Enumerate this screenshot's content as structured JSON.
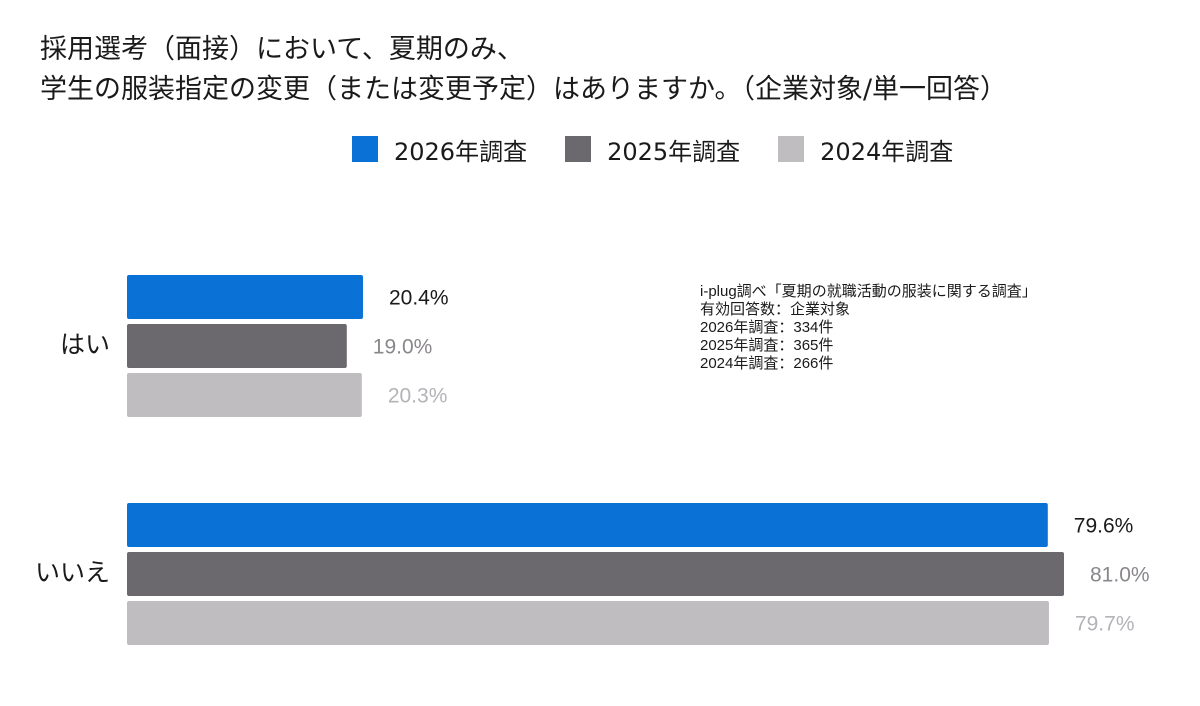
{
  "title": {
    "line1": "採用選考（面接）において、夏期のみ、",
    "line2": "学生の服装指定の変更（または変更予定）はありますか。（企業対象/単一回答）"
  },
  "note": {
    "line1": "i-plug調べ「夏期の就職活動の服装に関する調査」",
    "line2": "有効回答数：企業対象",
    "line3": "2026年調査：334件",
    "line4": "2025年調査：365件",
    "line5": "2024年調査：266件"
  },
  "chart_data": {
    "type": "bar",
    "orientation": "horizontal",
    "categories": [
      "はい",
      "いいえ"
    ],
    "series": [
      {
        "name": "2026年調査",
        "color": "#0a72d6",
        "label_color": "#1a1a1a",
        "values": [
          20.4,
          79.6
        ],
        "labels": [
          "20.4%",
          "79.6%"
        ]
      },
      {
        "name": "2025年調査",
        "color": "#6b696d",
        "label_color": "#8a878c",
        "values": [
          19.0,
          81.0
        ],
        "labels": [
          "19.0%",
          "81.0%"
        ]
      },
      {
        "name": "2024年調査",
        "color": "#bfbdc0",
        "label_color": "#b5b2b8",
        "values": [
          20.3,
          79.7
        ],
        "labels": [
          "20.3%",
          "79.7%"
        ]
      }
    ],
    "value_unit": "%",
    "xlim": [
      0,
      81.0
    ],
    "grid": false,
    "legend_position": "top-center"
  }
}
